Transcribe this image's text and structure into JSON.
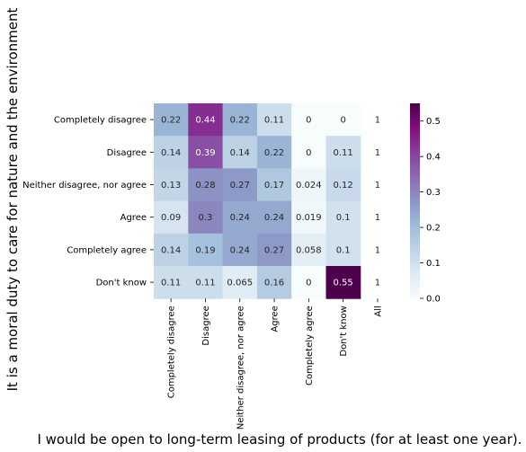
{
  "chart_data": {
    "type": "heatmap",
    "xlabel": "I would be open to long-term leasing of products (for at least one year).",
    "ylabel": "It is a moral duty to care for nature and the environment",
    "x_categories": [
      "Completely disagree",
      "Disagree",
      "Neither disagree, nor agree",
      "Agree",
      "Completely agree",
      "Don't know",
      "All"
    ],
    "y_categories": [
      "Completely disagree",
      "Disagree",
      "Neither disagree, nor agree",
      "Agree",
      "Completely agree",
      "Don't know"
    ],
    "values": [
      [
        0.22,
        0.44,
        0.22,
        0.11,
        0,
        0
      ],
      [
        0.14,
        0.39,
        0.14,
        0.22,
        0,
        0.11
      ],
      [
        0.13,
        0.28,
        0.27,
        0.17,
        0.024,
        0.12
      ],
      [
        0.09,
        0.3,
        0.24,
        0.24,
        0.019,
        0.1
      ],
      [
        0.14,
        0.19,
        0.24,
        0.27,
        0.058,
        0.1
      ],
      [
        0.11,
        0.11,
        0.065,
        0.16,
        0,
        0.55
      ]
    ],
    "value_labels": [
      [
        "0.22",
        "0.44",
        "0.22",
        "0.11",
        "0",
        "0"
      ],
      [
        "0.14",
        "0.39",
        "0.14",
        "0.22",
        "0",
        "0.11"
      ],
      [
        "0.13",
        "0.28",
        "0.27",
        "0.17",
        "0.024",
        "0.12"
      ],
      [
        "0.09",
        "0.3",
        "0.24",
        "0.24",
        "0.019",
        "0.1"
      ],
      [
        "0.14",
        "0.19",
        "0.24",
        "0.27",
        "0.058",
        "0.1"
      ],
      [
        "0.11",
        "0.11",
        "0.065",
        "0.16",
        "0",
        "0.55"
      ]
    ],
    "row_totals": [
      "1",
      "1",
      "1",
      "1",
      "1",
      "1"
    ],
    "colormap": "BuPu",
    "colorbar": {
      "min": 0,
      "max": 0.55,
      "ticks": [
        0.0,
        0.1,
        0.2,
        0.3,
        0.4,
        0.5
      ],
      "tick_labels": [
        "0.0",
        "0.1",
        "0.2",
        "0.3",
        "0.4",
        "0.5"
      ]
    },
    "colors": {
      "text_dark": "#262626",
      "text_light": "#ffffff"
    }
  }
}
